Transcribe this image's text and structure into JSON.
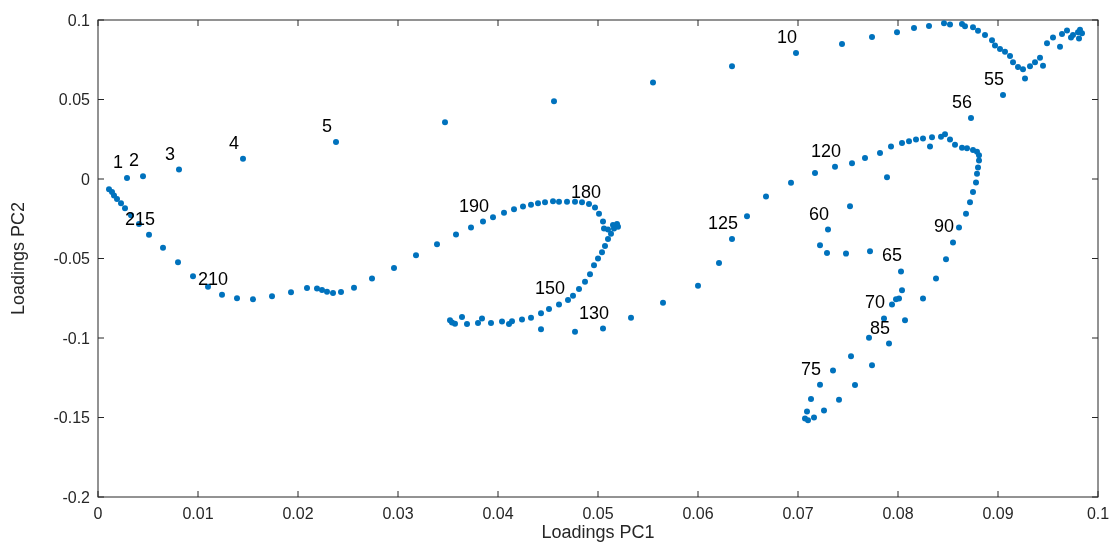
{
  "chart_data": {
    "type": "scatter",
    "xlabel": "Loadings PC1",
    "ylabel": "Loadings PC2",
    "xlim": [
      0,
      0.1
    ],
    "ylim": [
      -0.2,
      0.1
    ],
    "xticks": [
      0,
      0.01,
      0.02,
      0.03,
      0.04,
      0.05,
      0.06,
      0.07,
      0.08,
      0.09,
      0.1
    ],
    "yticks": [
      -0.2,
      -0.15,
      -0.1,
      -0.05,
      0,
      0.05,
      0.1
    ],
    "grid": false,
    "marker": "circle",
    "series": [
      {
        "color": "#0072bd",
        "x": [
          0.0029,
          0.0045,
          0.0081,
          0.0145,
          0.0238,
          0.0347,
          0.0456,
          0.0555,
          0.0634,
          0.0698,
          0.0744,
          0.0774,
          0.0799,
          0.0816,
          0.0831,
          0.0846,
          0.0852,
          0.0864,
          0.0867,
          0.0875,
          0.088,
          0.0887,
          0.0894,
          0.0897,
          0.0902,
          0.0907,
          0.0912,
          0.0915,
          0.092,
          0.0925,
          0.0927,
          0.0932,
          0.0937,
          0.0942,
          0.0945,
          0.0949,
          0.0955,
          0.0962,
          0.0964,
          0.0969,
          0.0973,
          0.0975,
          0.098,
          0.0982,
          0.0984,
          0.0981,
          0.0905,
          0.0873,
          0.0881,
          0.0879,
          0.0875,
          0.0869,
          0.0864,
          0.0857,
          0.0852,
          0.0847,
          0.0843,
          0.0834,
          0.0825,
          0.0818,
          0.0811,
          0.0804,
          0.0793,
          0.0782,
          0.0767,
          0.0754,
          0.0737,
          0.0717,
          0.0693,
          0.0668,
          0.0832,
          0.0789,
          0.0881,
          0.088,
          0.0879,
          0.0878,
          0.0875,
          0.0872,
          0.0868,
          0.0861,
          0.0855,
          0.0848,
          0.0838,
          0.0825,
          0.0807,
          0.0791,
          0.0774,
          0.0757,
          0.0741,
          0.0726,
          0.0716,
          0.071,
          0.0707,
          0.0709,
          0.0713,
          0.0722,
          0.0735,
          0.0753,
          0.0771,
          0.0786,
          0.0794,
          0.0798,
          0.0801,
          0.0804,
          0.0803,
          0.0772,
          0.0748,
          0.0729,
          0.0722,
          0.073,
          0.0752,
          0.0649,
          0.0634,
          0.0621,
          0.06,
          0.0565,
          0.0533,
          0.0505,
          0.0477,
          0.0443,
          0.0352,
          0.0354,
          0.0357,
          0.0364,
          0.0369,
          0.038,
          0.0384,
          0.0393,
          0.0404,
          0.0411,
          0.0414,
          0.0424,
          0.0433,
          0.0443,
          0.0451,
          0.0461,
          0.047,
          0.0475,
          0.0481,
          0.0487,
          0.0492,
          0.0496,
          0.05,
          0.0504,
          0.0507,
          0.051,
          0.0513,
          0.0516,
          0.0519,
          0.052,
          0.0515,
          0.051,
          0.0506,
          0.0505,
          0.0501,
          0.0497,
          0.0491,
          0.0484,
          0.0477,
          0.0469,
          0.0461,
          0.0455,
          0.0447,
          0.044,
          0.0433,
          0.0425,
          0.0416,
          0.0406,
          0.0395,
          0.0385,
          0.0373,
          0.0358,
          0.0339,
          0.0318,
          0.0296,
          0.0274,
          0.0256,
          0.0243,
          0.0235,
          0.0229,
          0.0224,
          0.0219,
          0.0209,
          0.0193,
          0.0174,
          0.0155,
          0.0139,
          0.0124,
          0.011,
          0.0095,
          0.008,
          0.0065,
          0.0051,
          0.0041,
          0.0033,
          0.0027,
          0.0023,
          0.0019,
          0.0016,
          0.0014,
          0.0011
        ],
        "values": [
          0.0007,
          0.0018,
          0.0059,
          0.0127,
          0.0232,
          0.0357,
          0.0489,
          0.0607,
          0.0709,
          0.0792,
          0.0849,
          0.0893,
          0.0923,
          0.0949,
          0.0962,
          0.098,
          0.0971,
          0.0975,
          0.0961,
          0.0954,
          0.0932,
          0.0906,
          0.0873,
          0.084,
          0.0818,
          0.0801,
          0.0774,
          0.0735,
          0.0704,
          0.0691,
          0.0632,
          0.0709,
          0.0735,
          0.0763,
          0.0713,
          0.0853,
          0.089,
          0.0831,
          0.0912,
          0.0934,
          0.089,
          0.0906,
          0.0923,
          0.0939,
          0.0917,
          0.0884,
          0.0528,
          0.0384,
          0.0149,
          0.0171,
          0.0182,
          0.0193,
          0.0197,
          0.0215,
          0.0248,
          0.0281,
          0.0265,
          0.0263,
          0.0254,
          0.0248,
          0.0237,
          0.0226,
          0.0204,
          0.0164,
          0.0132,
          0.0099,
          0.0077,
          0.0037,
          -0.0024,
          -0.011,
          0.0204,
          0.0011,
          0.0116,
          0.0072,
          0.0033,
          -0.0022,
          -0.0081,
          -0.0147,
          -0.0219,
          -0.0305,
          -0.0399,
          -0.0505,
          -0.0625,
          -0.0752,
          -0.0888,
          -0.1035,
          -0.1171,
          -0.1296,
          -0.1388,
          -0.1456,
          -0.15,
          -0.1518,
          -0.1507,
          -0.1463,
          -0.1384,
          -0.1294,
          -0.1204,
          -0.1114,
          -0.0998,
          -0.0877,
          -0.0789,
          -0.0757,
          -0.0752,
          -0.0699,
          -0.0581,
          -0.0454,
          -0.0469,
          -0.0465,
          -0.0417,
          -0.0318,
          -0.0171,
          -0.0235,
          -0.0377,
          -0.0528,
          -0.0671,
          -0.0778,
          -0.0873,
          -0.0941,
          -0.0961,
          -0.0945,
          -0.0888,
          -0.0903,
          -0.091,
          -0.0868,
          -0.0912,
          -0.0905,
          -0.0877,
          -0.0905,
          -0.0896,
          -0.0912,
          -0.0895,
          -0.0884,
          -0.0873,
          -0.0845,
          -0.0818,
          -0.0789,
          -0.0761,
          -0.0734,
          -0.0692,
          -0.0647,
          -0.0599,
          -0.0542,
          -0.05,
          -0.0461,
          -0.0421,
          -0.0377,
          -0.0344,
          -0.0311,
          -0.0283,
          -0.0301,
          -0.0289,
          -0.0318,
          -0.0311,
          -0.0268,
          -0.0219,
          -0.018,
          -0.0158,
          -0.0147,
          -0.0143,
          -0.0143,
          -0.0143,
          -0.014,
          -0.0147,
          -0.0153,
          -0.0162,
          -0.0173,
          -0.0191,
          -0.0213,
          -0.0241,
          -0.0268,
          -0.0305,
          -0.0349,
          -0.041,
          -0.048,
          -0.0559,
          -0.0625,
          -0.0684,
          -0.0711,
          -0.0717,
          -0.0709,
          -0.0698,
          -0.0689,
          -0.0686,
          -0.0712,
          -0.0738,
          -0.0757,
          -0.075,
          -0.0728,
          -0.0678,
          -0.0612,
          -0.0524,
          -0.0432,
          -0.0351,
          -0.0283,
          -0.0228,
          -0.0184,
          -0.0153,
          -0.0125,
          -0.0103,
          -0.0081,
          -0.0064
        ]
      }
    ],
    "annotations": [
      {
        "text": "1",
        "x": 0.0029,
        "y": 0.0007
      },
      {
        "text": "2",
        "x": 0.0045,
        "y": 0.0018
      },
      {
        "text": "3",
        "x": 0.0081,
        "y": 0.0059
      },
      {
        "text": "4",
        "x": 0.0145,
        "y": 0.0127
      },
      {
        "text": "5",
        "x": 0.0238,
        "y": 0.0232
      },
      {
        "text": "10",
        "x": 0.0698,
        "y": 0.0792
      },
      {
        "text": "55",
        "x": 0.0905,
        "y": 0.0528
      },
      {
        "text": "56",
        "x": 0.0873,
        "y": 0.0384
      },
      {
        "text": "120",
        "x": 0.0737,
        "y": 0.0077
      },
      {
        "text": "180",
        "x": 0.0497,
        "y": -0.018
      },
      {
        "text": "190",
        "x": 0.0385,
        "y": -0.0268
      },
      {
        "text": "125",
        "x": 0.0634,
        "y": -0.0377
      },
      {
        "text": "60",
        "x": 0.073,
        "y": -0.0318
      },
      {
        "text": "90",
        "x": 0.0855,
        "y": -0.0399
      },
      {
        "text": "65",
        "x": 0.0803,
        "y": -0.0581
      },
      {
        "text": "150",
        "x": 0.0461,
        "y": -0.0789
      },
      {
        "text": "70",
        "x": 0.0786,
        "y": -0.0877
      },
      {
        "text": "130",
        "x": 0.0505,
        "y": -0.0941
      },
      {
        "text": "85",
        "x": 0.0791,
        "y": -0.1035
      },
      {
        "text": "75",
        "x": 0.0722,
        "y": -0.1294
      },
      {
        "text": "210",
        "x": 0.0124,
        "y": -0.0728
      },
      {
        "text": "215",
        "x": 0.0051,
        "y": -0.0351
      }
    ]
  }
}
